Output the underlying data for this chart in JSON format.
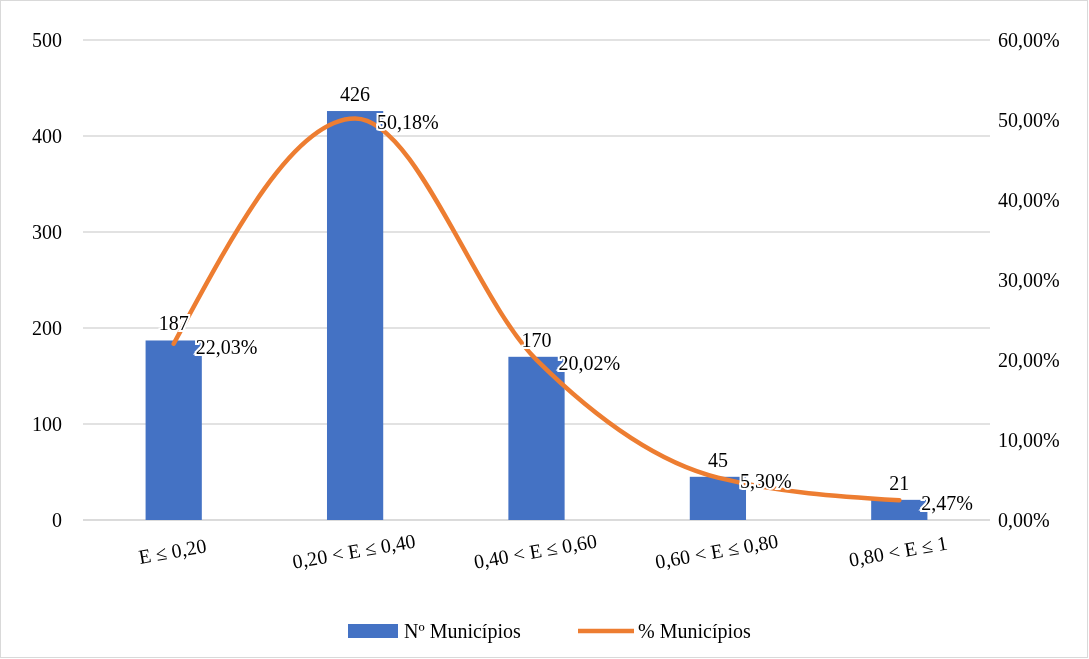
{
  "chart_data": {
    "type": "bar",
    "categories": [
      "E ≤ 0,20",
      "0,20 < E  ≤ 0,40",
      "0,40 < E ≤ 0,60",
      "0,60 < E  ≤ 0,80",
      "0,80 < E ≤ 1"
    ],
    "series": [
      {
        "name": "Nº Municípios",
        "color": "#4472c4",
        "values": [
          187,
          426,
          170,
          45,
          21
        ],
        "value_labels": [
          "187",
          "426",
          "170",
          "45",
          "21"
        ]
      },
      {
        "name": "% Municípios",
        "type": "line",
        "axis": "y2",
        "color": "#ed7d31",
        "values": [
          22.03,
          50.18,
          20.02,
          5.3,
          2.47
        ],
        "value_labels": [
          "22,03%",
          "50,18%",
          "20,02%",
          "5,30%",
          "2,47%"
        ]
      }
    ],
    "ylim": [
      0,
      500
    ],
    "yticks": [
      0,
      100,
      200,
      300,
      400,
      500
    ],
    "y2lim": [
      0,
      60
    ],
    "y2ticks": [
      {
        "value": 0,
        "label": "0,00%"
      },
      {
        "value": 10,
        "label": "10,00%"
      },
      {
        "value": 20,
        "label": "20,00%"
      },
      {
        "value": 30,
        "label": "30,00%"
      },
      {
        "value": 40,
        "label": "40,00%"
      },
      {
        "value": 50,
        "label": "50,00%"
      },
      {
        "value": 60,
        "label": "60,00%"
      }
    ],
    "grid": "y",
    "legend": "bottom",
    "line_style": "solid",
    "marker": "none"
  }
}
